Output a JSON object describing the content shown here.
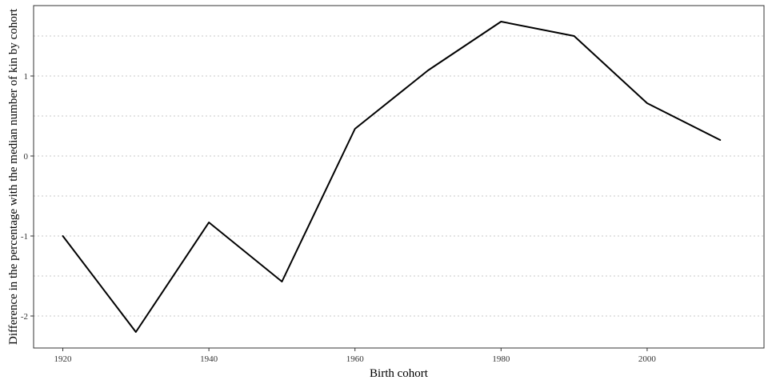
{
  "chart_data": {
    "type": "line",
    "title": "",
    "xlabel": "Birth cohort",
    "ylabel": "Difference in the percentage with the median number of kin by cohort",
    "x": [
      1920,
      1930,
      1940,
      1950,
      1960,
      1970,
      1980,
      1990,
      2000,
      2010
    ],
    "series": [
      {
        "values": [
          -1.0,
          -2.2,
          -0.83,
          -1.57,
          0.34,
          1.07,
          1.68,
          1.5,
          0.66,
          0.2
        ]
      }
    ],
    "xlim": [
      1916,
      2016
    ],
    "ylim": [
      -2.4,
      1.88
    ],
    "x_ticks": [
      1920,
      1940,
      1960,
      1980,
      2000
    ],
    "x_tick_labels": [
      "1920",
      "1940",
      "1960",
      "1980",
      "2000"
    ],
    "y_ticks": [
      -2,
      -1,
      0,
      1
    ],
    "y_tick_labels": [
      "-2",
      "-1",
      "0",
      "1"
    ],
    "grid": "horizontal-dotted",
    "legend": "none",
    "colors": {
      "line": "#000000",
      "grid": "#c8c8c8",
      "frame": "#333333"
    }
  }
}
